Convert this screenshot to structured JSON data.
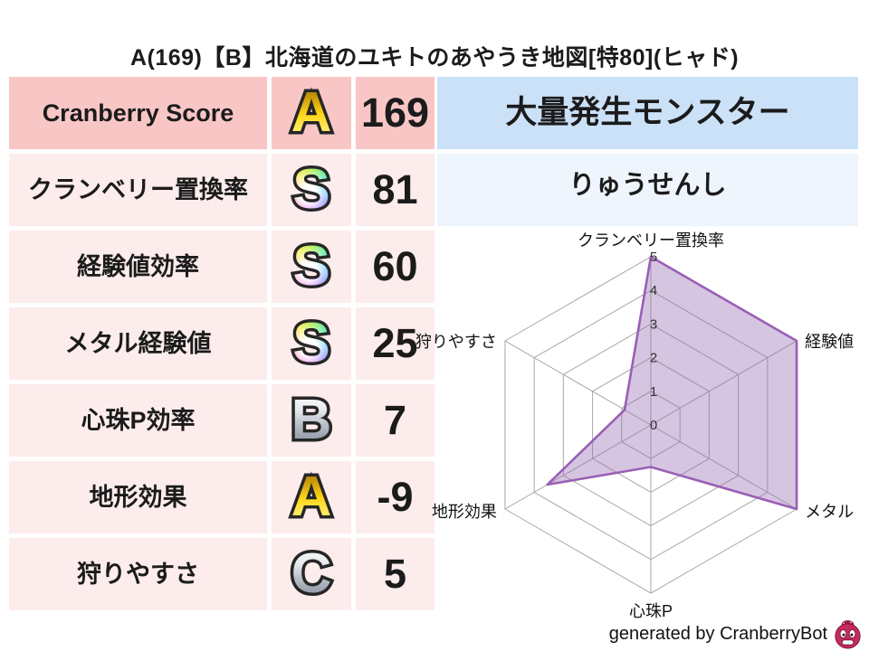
{
  "title": "A(169)【B】北海道のユキトのあやうき地図[特80](ヒャド)",
  "stats_table": {
    "rows": [
      {
        "label": "Cranberry Score",
        "grade": "A",
        "grade_style": "gold",
        "value": "169"
      },
      {
        "label": "クランベリー置換率",
        "grade": "S",
        "grade_style": "rainbow",
        "value": "81"
      },
      {
        "label": "経験値効率",
        "grade": "S",
        "grade_style": "rainbow",
        "value": "60"
      },
      {
        "label": "メタル経験値",
        "grade": "S",
        "grade_style": "rainbow",
        "value": "25"
      },
      {
        "label": "心珠P効率",
        "grade": "B",
        "grade_style": "silver",
        "value": "7"
      },
      {
        "label": "地形効果",
        "grade": "A",
        "grade_style": "gold",
        "value": "-9"
      },
      {
        "label": "狩りやすさ",
        "grade": "C",
        "grade_style": "silver",
        "value": "5"
      }
    ]
  },
  "monster_panel": {
    "header": "大量発生モンスター",
    "name": "りゅうせんし"
  },
  "footer": {
    "credit": "generated by CranberryBot",
    "icon": "cranberry-mascot-icon"
  },
  "colors": {
    "row_highlight": "#f9c6c6",
    "row_normal": "#fdecec",
    "monster_header_bg": "#cbe1f7",
    "monster_name_bg": "#eef5fc",
    "radar_fill": "rgba(148,103,176,0.38)",
    "radar_stroke": "#9a5fb5",
    "radar_grid": "#a8a8a8"
  },
  "chart_data": {
    "type": "radar",
    "title": "",
    "categories": [
      "クランベリー置換率",
      "経験値",
      "メタル",
      "心珠P",
      "地形効果",
      "狩りやすさ"
    ],
    "values": [
      5,
      5,
      5,
      1.25,
      3.55,
      0.9
    ],
    "ticks": [
      0,
      1,
      2,
      3,
      4,
      5
    ],
    "range": [
      0,
      5
    ],
    "grid": true,
    "legend_position": "none",
    "grid_color": "#a8a8a8",
    "fill_color": "rgba(148,103,176,0.38)",
    "stroke_color": "#9a5fb5"
  }
}
